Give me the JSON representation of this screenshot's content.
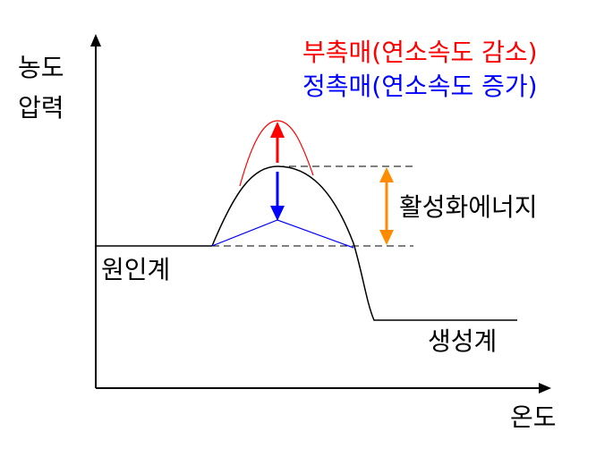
{
  "axes": {
    "y_label_line1": "농도",
    "y_label_line2": "압력",
    "x_label": "온도"
  },
  "legend": {
    "negative_catalyst": "부촉매(연소속도 감소)",
    "positive_catalyst": "정촉매(연소속도 증가)"
  },
  "labels": {
    "reactants": "원인계",
    "products": "생성계",
    "activation_energy": "활성화에너지"
  },
  "colors": {
    "negative_catalyst": "#ff0000",
    "positive_catalyst": "#0000ff",
    "activation_energy_arrow": "#ff8c00",
    "axes": "#000000"
  }
}
